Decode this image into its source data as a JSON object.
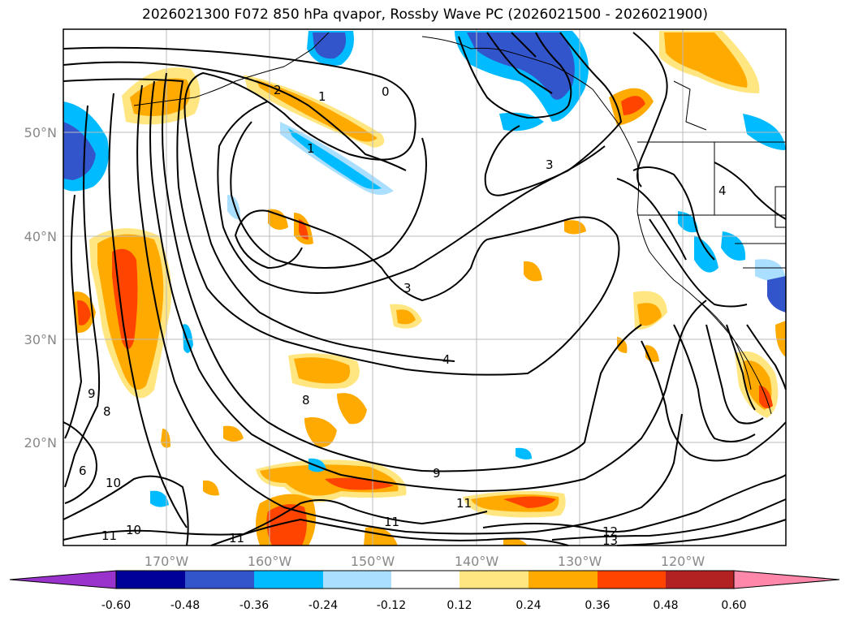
{
  "title": "2026021300 F072 850 hPa qvapor, Rossby Wave PC (2026021500 - 2026021900)",
  "map": {
    "lon_range": [
      -180,
      -110
    ],
    "lat_range": [
      10,
      60
    ],
    "lon_ticks": [
      {
        "value": -170,
        "label": "170°W"
      },
      {
        "value": -160,
        "label": "160°W"
      },
      {
        "value": -150,
        "label": "150°W"
      },
      {
        "value": -140,
        "label": "140°W"
      },
      {
        "value": -130,
        "label": "130°W"
      },
      {
        "value": -120,
        "label": "120°W"
      }
    ],
    "lat_ticks": [
      {
        "value": 20,
        "label": "20°N"
      },
      {
        "value": 30,
        "label": "30°N"
      },
      {
        "value": 40,
        "label": "40°N"
      },
      {
        "value": 50,
        "label": "50°N"
      }
    ],
    "grid": true
  },
  "contour_labels": [
    "0",
    "1",
    "1",
    "2",
    "3",
    "3",
    "4",
    "4",
    "6",
    "8",
    "8",
    "9",
    "9",
    "10",
    "10",
    "11",
    "11",
    "11",
    "11",
    "12",
    "13"
  ],
  "colorbar": {
    "levels": [
      "-0.60",
      "-0.48",
      "-0.36",
      "-0.24",
      "-0.12",
      "0.12",
      "0.24",
      "0.36",
      "0.48",
      "0.60"
    ],
    "colors": {
      "under": "#9933cc",
      "c1": "#000099",
      "c2": "#3355cc",
      "c3": "#00bbff",
      "c4": "#aadfff",
      "c5": "#ffffff",
      "c6": "#ffe680",
      "c7": "#ffaa00",
      "c8": "#ff4400",
      "c9": "#b22222",
      "over": "#ff88aa"
    }
  }
}
